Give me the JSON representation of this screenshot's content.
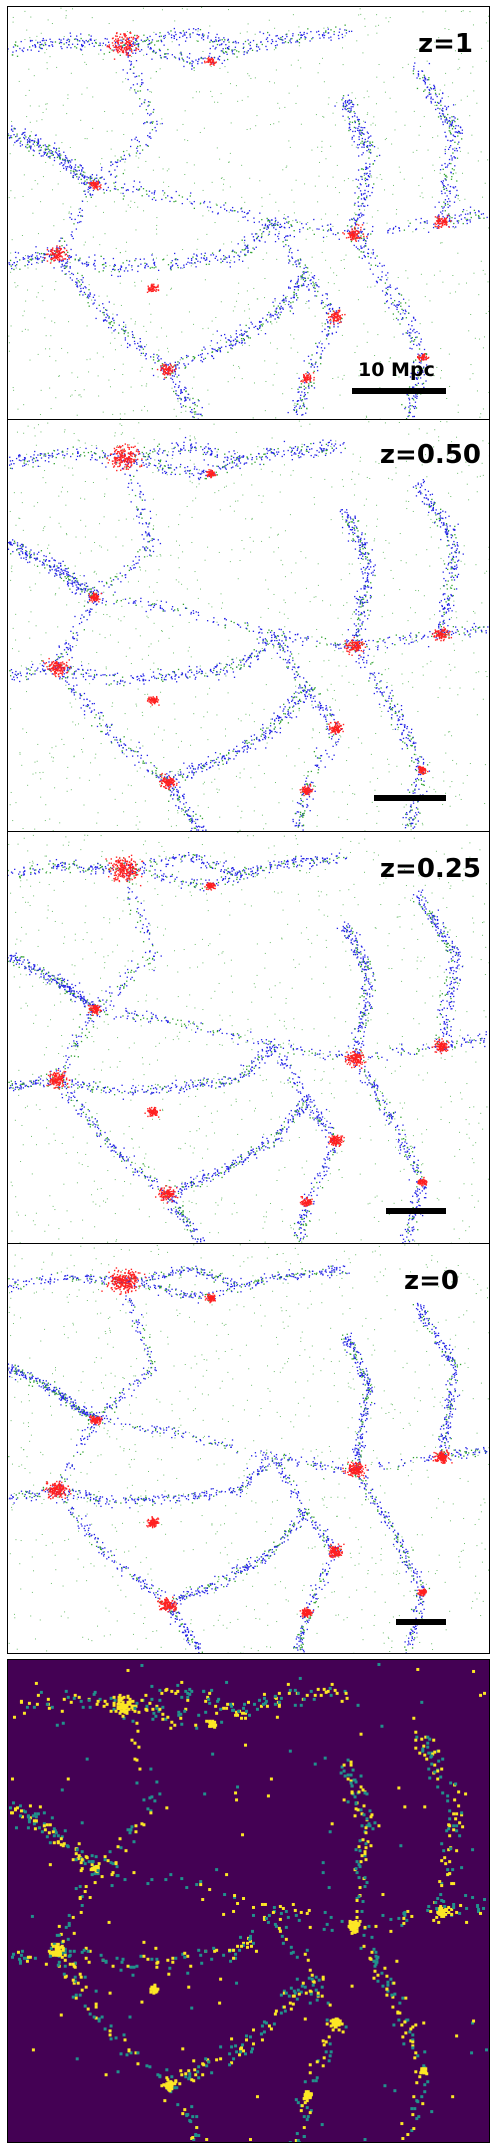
{
  "panels": [
    {
      "redshift_label": "z=1",
      "scale_bar_label": "10 Mpc",
      "colors": {
        "gas": "#2ca02c",
        "dark_matter": "#1f1fe6",
        "halos": "#ff2020"
      }
    },
    {
      "redshift_label": "z=0.50",
      "scale_bar_label": "",
      "colors": {
        "gas": "#2ca02c",
        "dark_matter": "#1f1fe6",
        "halos": "#ff2020"
      }
    },
    {
      "redshift_label": "z=0.25",
      "scale_bar_label": "",
      "colors": {
        "gas": "#2ca02c",
        "dark_matter": "#1f1fe6",
        "halos": "#ff2020"
      }
    },
    {
      "redshift_label": "z=0",
      "scale_bar_label": "",
      "colors": {
        "gas": "#2ca02c",
        "dark_matter": "#1f1fe6",
        "halos": "#ff2020"
      }
    }
  ],
  "density_map": {
    "colormap": "viridis",
    "background": "#440154",
    "low": "#21918c",
    "high": "#fde725"
  }
}
